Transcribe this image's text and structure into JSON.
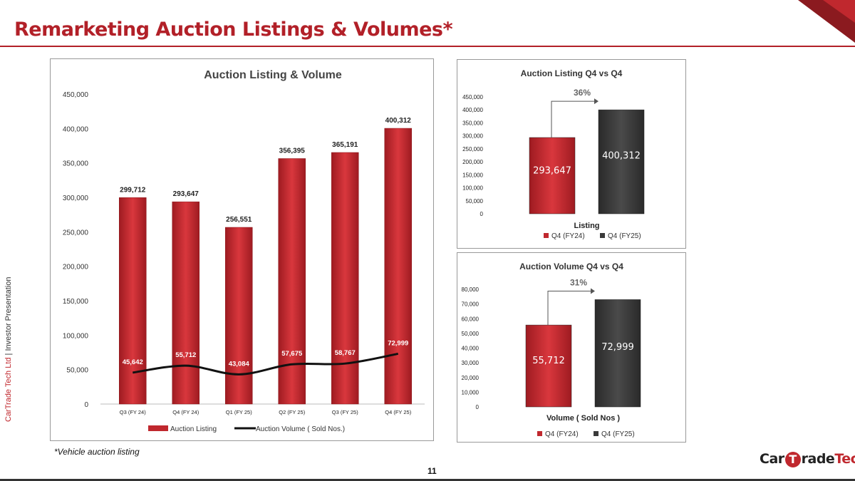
{
  "slide": {
    "title": "Remarketing Auction Listings & Volumes*",
    "side_label_company": "CarTrade Tech Ltd",
    "side_label_separator": " | ",
    "side_label_doc": "Investor Presentation",
    "footnote": "*Vehicle auction listing",
    "page_number": "11",
    "logo_part1": "Car",
    "logo_part2": "T",
    "logo_part3": "rade",
    "logo_part4": "Tech",
    "colors": {
      "brand_red": "#b22028",
      "bar_red": "#c0282e",
      "bar_dark": "#3a3a3a"
    }
  },
  "chart_data": [
    {
      "type": "bar",
      "title": "Auction Listing & Volume",
      "categories": [
        "Q3 (FY 24)",
        "Q4 (FY 24)",
        "Q1 (FY 25)",
        "Q2 (FY 25)",
        "Q3 (FY 25)",
        "Q4 (FY 25)"
      ],
      "series": [
        {
          "name": "Auction Listing",
          "type": "bar",
          "values": [
            299712,
            293647,
            256551,
            356395,
            365191,
            400312
          ],
          "labels": [
            "299,712",
            "293,647",
            "256,551",
            "356,395",
            "365,191",
            "400,312"
          ]
        },
        {
          "name": "Auction Volume ( Sold Nos.)",
          "type": "line",
          "values": [
            45642,
            55712,
            43084,
            57675,
            58767,
            72999
          ],
          "labels": [
            "45,642",
            "55,712",
            "43,084",
            "57,675",
            "58,767",
            "72,999"
          ]
        }
      ],
      "ylim": [
        0,
        450000
      ],
      "yticks": [
        0,
        50000,
        100000,
        150000,
        200000,
        250000,
        300000,
        350000,
        400000,
        450000
      ],
      "ytick_labels": [
        "0",
        "50,000",
        "100,000",
        "150,000",
        "200,000",
        "250,000",
        "300,000",
        "350,000",
        "400,000",
        "450,000"
      ],
      "legend": "bottom",
      "grid": false
    },
    {
      "type": "bar",
      "title": "Auction Listing Q4 vs Q4",
      "xlabel": "Listing",
      "series": [
        {
          "name": "Q4 (FY24)",
          "value": 293647,
          "label": "293,647",
          "color": "#d32f35"
        },
        {
          "name": "Q4 (FY25)",
          "value": 400312,
          "label": "400,312",
          "color": "#3a3a3a"
        }
      ],
      "growth_label": "36%",
      "ylim": [
        0,
        450000
      ],
      "yticks": [
        0,
        50000,
        100000,
        150000,
        200000,
        250000,
        300000,
        350000,
        400000,
        450000
      ],
      "ytick_labels": [
        "0",
        "50,000",
        "100,000",
        "150,000",
        "200,000",
        "250,000",
        "300,000",
        "350,000",
        "400,000",
        "450,000"
      ],
      "legend": "bottom",
      "grid": false
    },
    {
      "type": "bar",
      "title": "Auction Volume Q4 vs Q4",
      "xlabel": "Volume ( Sold Nos )",
      "series": [
        {
          "name": "Q4 (FY24)",
          "value": 55712,
          "label": "55,712",
          "color": "#d32f35"
        },
        {
          "name": "Q4 (FY25)",
          "value": 72999,
          "label": "72,999",
          "color": "#3a3a3a"
        }
      ],
      "growth_label": "31%",
      "ylim": [
        0,
        80000
      ],
      "yticks": [
        0,
        10000,
        20000,
        30000,
        40000,
        50000,
        60000,
        70000,
        80000
      ],
      "ytick_labels": [
        "0",
        "10,000",
        "20,000",
        "30,000",
        "40,000",
        "50,000",
        "60,000",
        "70,000",
        "80,000"
      ],
      "legend": "bottom",
      "grid": false
    }
  ]
}
